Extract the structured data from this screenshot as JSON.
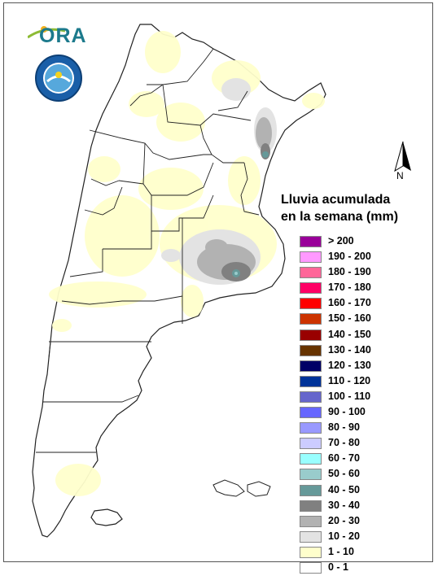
{
  "logos": {
    "ora_text": "ORA",
    "smn_icon": "smn-seal"
  },
  "north": {
    "label": "N"
  },
  "legend": {
    "title_line1": "Lluvia acumulada",
    "title_line2": "en la semana (mm)",
    "items": [
      {
        "label": "> 200",
        "color": "#990099"
      },
      {
        "label": "190 - 200",
        "color": "#ff99ff"
      },
      {
        "label": "180 - 190",
        "color": "#ff6699"
      },
      {
        "label": "170 - 180",
        "color": "#ff0066"
      },
      {
        "label": "160 - 170",
        "color": "#ff0000"
      },
      {
        "label": "150 - 160",
        "color": "#cc3300"
      },
      {
        "label": "140 - 150",
        "color": "#990000"
      },
      {
        "label": "130 - 140",
        "color": "#663300"
      },
      {
        "label": "120 - 130",
        "color": "#000066"
      },
      {
        "label": "110 - 120",
        "color": "#003399"
      },
      {
        "label": "100 - 110",
        "color": "#6666cc"
      },
      {
        "label": "90 - 100",
        "color": "#6666ff"
      },
      {
        "label": "80 - 90",
        "color": "#9999ff"
      },
      {
        "label": "70 - 80",
        "color": "#ccccff"
      },
      {
        "label": "60 - 70",
        "color": "#99ffff"
      },
      {
        "label": "50 - 60",
        "color": "#99cccc"
      },
      {
        "label": "40 - 50",
        "color": "#669999"
      },
      {
        "label": "30 - 40",
        "color": "#808080"
      },
      {
        "label": "20 - 30",
        "color": "#b2b2b2"
      },
      {
        "label": "10 - 20",
        "color": "#e3e3e3"
      },
      {
        "label": "1 - 10",
        "color": "#ffffcc"
      },
      {
        "label": "0 - 1",
        "color": "#ffffff"
      }
    ]
  },
  "map": {
    "land_color": "#ffffff",
    "border_color": "#222222"
  }
}
